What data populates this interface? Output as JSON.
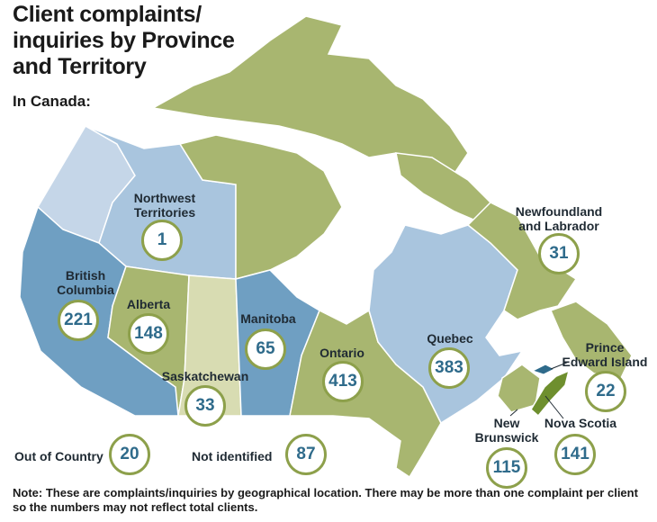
{
  "title": "Client complaints/\ninquiries by Province\nand Territory",
  "subtitle": "In Canada:",
  "colors": {
    "badge_ring": "#8da04b",
    "badge_text": "#2f6b8b",
    "steel_blue": "#6f9fc2",
    "light_blue": "#a9c5de",
    "pale_blue": "#c5d6e8",
    "olive": "#a8b670",
    "pale_olive": "#d8dcb2",
    "green": "#6e8f2e"
  },
  "regions": {
    "nwt": {
      "label": "Northwest\nTerritories",
      "value": "1"
    },
    "bc": {
      "label": "British\nColumbia",
      "value": "221"
    },
    "ab": {
      "label": "Alberta",
      "value": "148"
    },
    "sk": {
      "label": "Saskatchewan",
      "value": "33"
    },
    "mb": {
      "label": "Manitoba",
      "value": "65"
    },
    "on": {
      "label": "Ontario",
      "value": "413"
    },
    "qc": {
      "label": "Quebec",
      "value": "383"
    },
    "nl": {
      "label": "Newfoundland\nand Labrador",
      "value": "31"
    },
    "pei": {
      "label": "Prince\nEdward Island",
      "value": "22"
    },
    "nb": {
      "label": "New\nBrunswick",
      "value": "115"
    },
    "ns": {
      "label": "Nova Scotia",
      "value": "141"
    }
  },
  "extras": {
    "out_of_country": {
      "label": "Out of Country",
      "value": "20"
    },
    "not_identified": {
      "label": "Not identified",
      "value": "87"
    }
  },
  "note": "Note: These are complaints/inquiries by geographical location. There may be more than one complaint per client so the numbers may not reflect total clients."
}
